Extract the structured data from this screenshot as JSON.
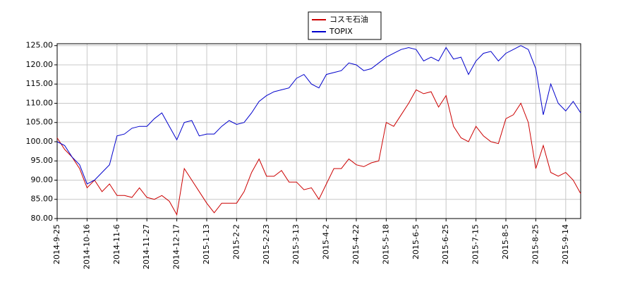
{
  "chart_data": {
    "type": "line",
    "x": [
      "2014-9-25",
      null,
      null,
      null,
      "2014-10-16",
      null,
      null,
      null,
      "2014-11-6",
      null,
      null,
      null,
      "2014-11-27",
      null,
      null,
      null,
      "2014-12-17",
      null,
      null,
      null,
      "2015-1-13",
      null,
      null,
      null,
      "2015-2-2",
      null,
      null,
      null,
      "2015-2-23",
      null,
      null,
      null,
      "2015-3-13",
      null,
      null,
      null,
      "2015-4-2",
      null,
      null,
      null,
      "2015-4-22",
      null,
      null,
      null,
      "2015-5-18",
      null,
      null,
      null,
      "2015-6-5",
      null,
      null,
      null,
      "2015-6-25",
      null,
      null,
      null,
      "2015-7-15",
      null,
      null,
      null,
      "2015-8-5",
      null,
      null,
      null,
      "2015-8-25",
      null,
      null,
      null,
      "2015-9-14",
      null,
      null
    ],
    "series": [
      {
        "name": "コスモ石油",
        "color": "#cc0000",
        "values": [
          101,
          98,
          96,
          93,
          88,
          90,
          87,
          89,
          86,
          86,
          85.5,
          88,
          85.5,
          85,
          86,
          84.5,
          81,
          93,
          90,
          87,
          84,
          81.5,
          84,
          84,
          84,
          87,
          92,
          95.5,
          91,
          91,
          92.5,
          89.5,
          89.5,
          87.5,
          88,
          85,
          89,
          93,
          93,
          95.5,
          94,
          93.5,
          94.5,
          95,
          105,
          104,
          107,
          110,
          113.5,
          112.5,
          113,
          109,
          112,
          104,
          101,
          100,
          104,
          101.5,
          100,
          99.5,
          106,
          107,
          110,
          105,
          93,
          99,
          92,
          91,
          92,
          90,
          86.5
        ]
      },
      {
        "name": "TOPIX",
        "color": "#0000cc",
        "values": [
          100,
          99,
          96,
          94,
          89,
          90,
          92,
          94,
          101.5,
          102,
          103.5,
          104,
          104,
          106,
          107.5,
          104,
          100.5,
          105,
          105.5,
          101.5,
          102,
          102,
          104,
          105.5,
          104.5,
          105,
          107.5,
          110.5,
          112,
          113,
          113.5,
          114,
          116.5,
          117.5,
          115,
          114,
          117.5,
          118,
          118.5,
          120.5,
          120,
          118.5,
          119,
          120.5,
          122,
          123,
          124,
          124.5,
          124,
          121,
          122,
          121,
          124.5,
          121.5,
          122,
          117.5,
          121,
          123,
          123.5,
          121,
          123,
          124,
          125,
          124,
          119,
          107,
          115,
          110,
          108,
          110.5,
          107.5
        ]
      }
    ],
    "ylim": [
      80,
      125.5
    ],
    "yticks": [
      {
        "value": 80,
        "label": "80.00"
      },
      {
        "value": 85,
        "label": "85.00"
      },
      {
        "value": 90,
        "label": "90.00"
      },
      {
        "value": 95,
        "label": "95.00"
      },
      {
        "value": 100,
        "label": "100.00"
      },
      {
        "value": 105,
        "label": "105.00"
      },
      {
        "value": 110,
        "label": "110.00"
      },
      {
        "value": 115,
        "label": "115.00"
      },
      {
        "value": 120,
        "label": "120.00"
      },
      {
        "value": 125,
        "label": "125.00"
      }
    ],
    "grid": true,
    "legend": "top"
  }
}
